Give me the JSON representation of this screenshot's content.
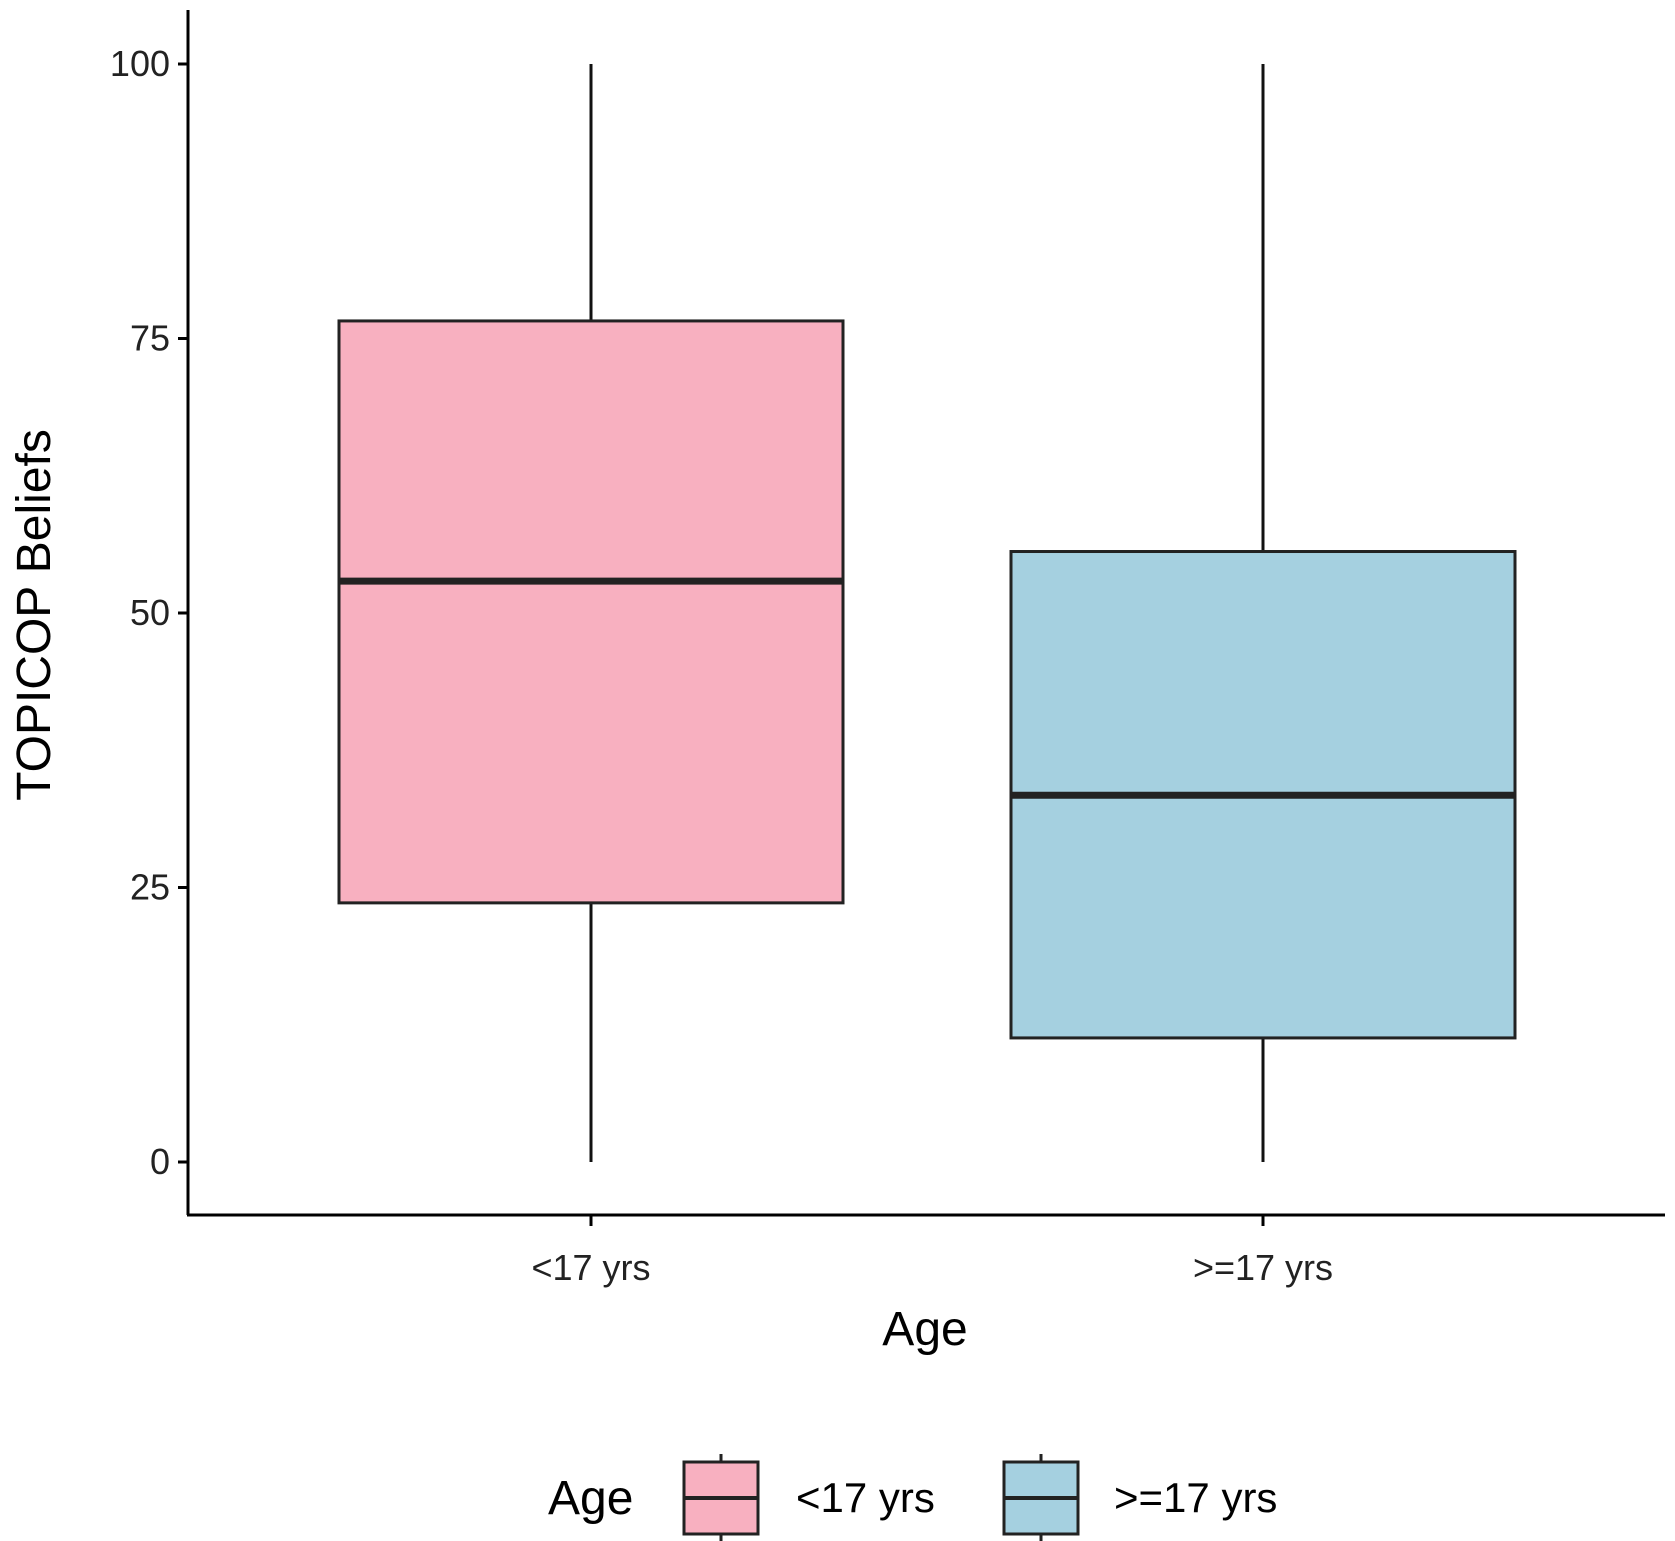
{
  "chart_data": {
    "type": "boxplot",
    "xlabel": "Age",
    "ylabel": "TOPICOP Beliefs",
    "ylim": [
      0,
      100
    ],
    "yticks": [
      "0",
      "25",
      "50",
      "75",
      "100"
    ],
    "categories": [
      "<17 yrs",
      ">=17 yrs"
    ],
    "boxes": [
      {
        "category": "<17 yrs",
        "min": 0,
        "q1": 23.6,
        "median": 52.9,
        "q3": 76.6,
        "max": 100,
        "color": "#f8b0c0"
      },
      {
        "category": ">=17 yrs",
        "min": 0,
        "q1": 11.3,
        "median": 33.4,
        "q3": 55.6,
        "max": 100,
        "color": "#a5d0e0"
      }
    ],
    "grid": false,
    "legend": {
      "title": "Age",
      "placement": "bottom",
      "entries": [
        "<17 yrs",
        ">=17 yrs"
      ]
    }
  }
}
